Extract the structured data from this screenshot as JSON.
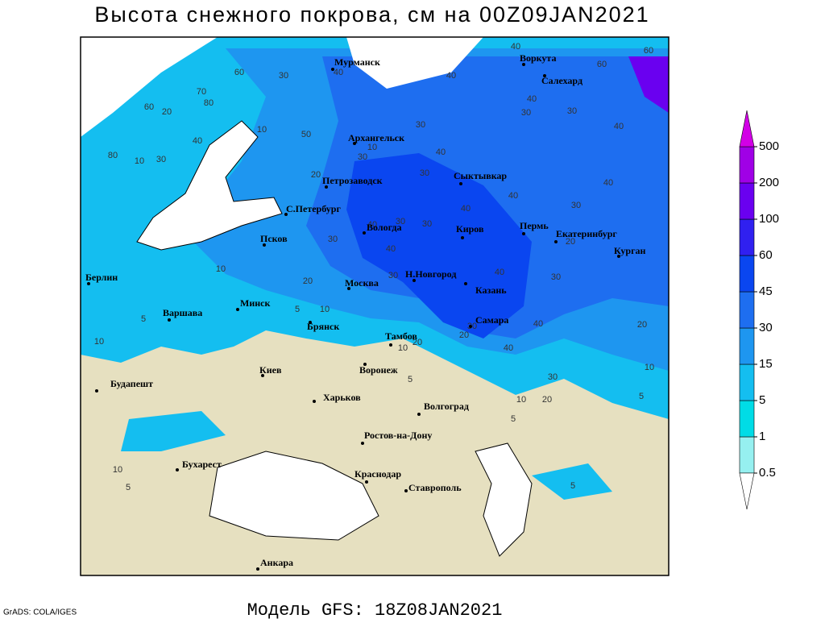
{
  "title": "Высота снежного покрова, см на 00Z09JAN2021",
  "footer_left": "GrADS: COLA/IGES",
  "model_label": "Модель GFS: 18Z08JAN2021",
  "colorbar": {
    "levels": [
      0.5,
      1,
      5,
      15,
      30,
      45,
      60,
      100,
      200,
      500
    ],
    "colors": [
      "#96f0f0",
      "#00dce6",
      "#14bef0",
      "#1e96f0",
      "#1e6ef0",
      "#0a46f0",
      "#3020f0",
      "#6a00f0",
      "#a000e6"
    ],
    "under_color": "#ffffff",
    "over_color": "#d200e6"
  },
  "cities": [
    {
      "name": "Мурманск"
    },
    {
      "name": "Воркута"
    },
    {
      "name": "Салехард"
    },
    {
      "name": "Архангельск"
    },
    {
      "name": "Сыктывкар"
    },
    {
      "name": "Петрозаводск"
    },
    {
      "name": "С.Петербург"
    },
    {
      "name": "Вологда"
    },
    {
      "name": "Киров"
    },
    {
      "name": "Пермь"
    },
    {
      "name": "Екатеринбург"
    },
    {
      "name": "Курган"
    },
    {
      "name": "Псков"
    },
    {
      "name": "Н.Новгород"
    },
    {
      "name": "Казань"
    },
    {
      "name": "Москва"
    },
    {
      "name": "Берлин"
    },
    {
      "name": "Минск"
    },
    {
      "name": "Варшава"
    },
    {
      "name": "Брянск"
    },
    {
      "name": "Тамбов"
    },
    {
      "name": "Самара"
    },
    {
      "name": "Киев"
    },
    {
      "name": "Воронеж"
    },
    {
      "name": "Харьков"
    },
    {
      "name": "Будапешт"
    },
    {
      "name": "Волгоград"
    },
    {
      "name": "Ростов-на-Дону"
    },
    {
      "name": "Бухарест"
    },
    {
      "name": "Краснодар"
    },
    {
      "name": "Ставрополь"
    },
    {
      "name": "Анкара"
    }
  ],
  "contour_labels": [
    60,
    30,
    40,
    70,
    80,
    20,
    60,
    40,
    80,
    10,
    30,
    10,
    50,
    10,
    30,
    30,
    40,
    40,
    40,
    60,
    60,
    40,
    30,
    30,
    40,
    30,
    40,
    40,
    40,
    30,
    20,
    40,
    30,
    30,
    30,
    40,
    30,
    20,
    10,
    40,
    30,
    20,
    5,
    10,
    5,
    30,
    40,
    20,
    40,
    20,
    10,
    10,
    20,
    5,
    30,
    10,
    10,
    20,
    5,
    5,
    10,
    5,
    5
  ]
}
